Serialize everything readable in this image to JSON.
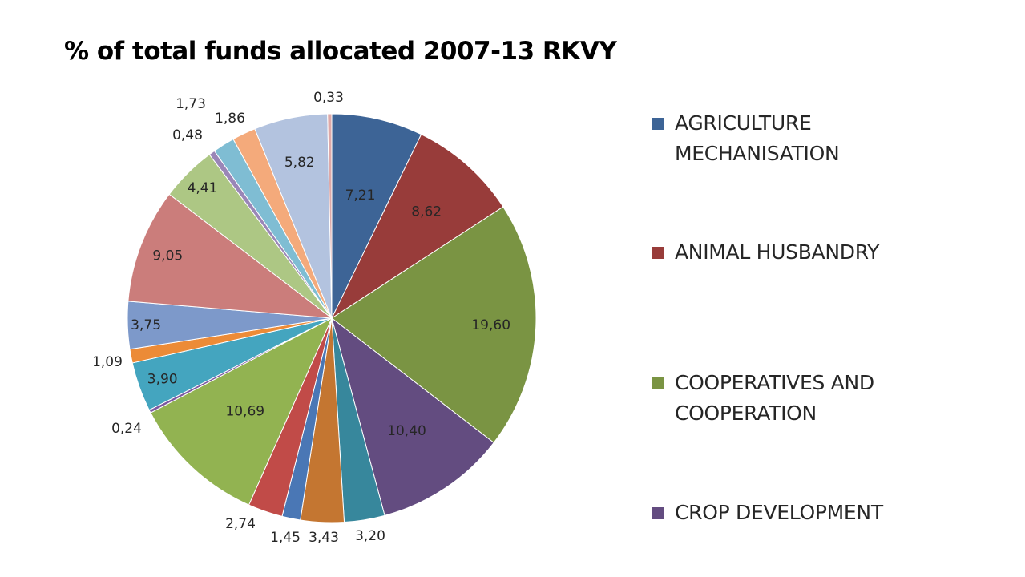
{
  "chart_data": {
    "type": "pie",
    "title": "% of total funds allocated 2007-13 RKVY",
    "values": [
      7.21,
      8.62,
      19.6,
      10.4,
      3.2,
      3.43,
      1.45,
      2.74,
      10.69,
      0.24,
      3.9,
      1.09,
      3.75,
      9.05,
      4.41,
      0.48,
      1.73,
      1.86,
      5.82,
      0.33
    ],
    "labels": [
      "7,21",
      "8,62",
      "19,60",
      "10,40",
      "3,20",
      "3,43",
      "1,45",
      "2,74",
      "10,69",
      "0,24",
      "3,90",
      "1,09",
      "3,75",
      "9,05",
      "4,41",
      "0,48",
      "1,73",
      "1,86",
      "5,82",
      "0,33"
    ],
    "colors": [
      "#3D6496",
      "#983C3A",
      "#7A9443",
      "#634C80",
      "#37879C",
      "#C47631",
      "#4A77B5",
      "#C14B48",
      "#92B351",
      "#7B58A0",
      "#44A5BF",
      "#EC8B37",
      "#7D99CA",
      "#CB7D7B",
      "#ADC784",
      "#9A86B7",
      "#7FBDD3",
      "#F4AA7B",
      "#B3C3DF",
      "#DEA9A8"
    ],
    "legend": [
      {
        "name": "AGRICULTURE MECHANISATION",
        "color": "#3D6496"
      },
      {
        "name": "ANIMAL HUSBANDRY",
        "color": "#983C3A"
      },
      {
        "name": "COOPERATIVES AND COOPERATION",
        "color": "#7A9443"
      },
      {
        "name": "CROP DEVELOPMENT",
        "color": "#634C80"
      }
    ],
    "legend_position": "right"
  }
}
